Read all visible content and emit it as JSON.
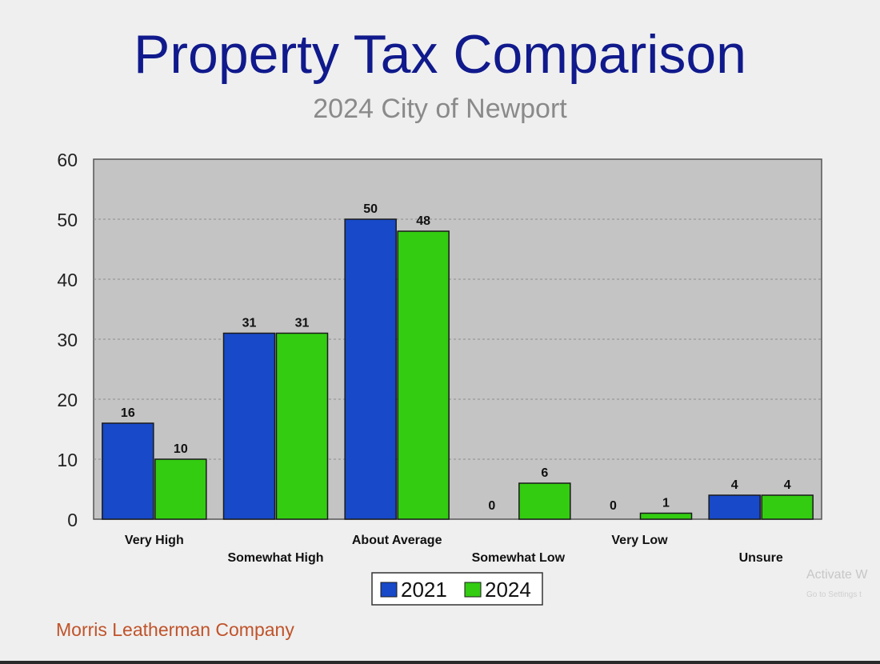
{
  "title": "Property Tax Comparison",
  "subtitle": "2024 City of Newport",
  "footer": "Morris Leatherman Company",
  "watermark": {
    "line1": "Activate W",
    "line2": "Go to Settings t"
  },
  "colors": {
    "series_2021": "#1749c8",
    "series_2024": "#33cc11",
    "plot_bg": "#c4c4c4",
    "title": "#101a8c",
    "subtitle": "#8a8a8a",
    "footer": "#c0532a"
  },
  "chart_data": {
    "type": "bar",
    "title": "Property Tax Comparison",
    "subtitle": "2024 City of Newport",
    "categories": [
      "Very High",
      "Somewhat High",
      "About Average",
      "Somewhat Low",
      "Very Low",
      "Unsure"
    ],
    "series": [
      {
        "name": "2021",
        "values": [
          16,
          31,
          50,
          0,
          0,
          4
        ]
      },
      {
        "name": "2024",
        "values": [
          10,
          31,
          48,
          6,
          1,
          4
        ]
      }
    ],
    "xlabel": "",
    "ylabel": "",
    "ylim": [
      0,
      60
    ],
    "yticks": [
      0,
      10,
      20,
      30,
      40,
      50,
      60
    ],
    "grid": true,
    "legend": "bottom-center"
  }
}
